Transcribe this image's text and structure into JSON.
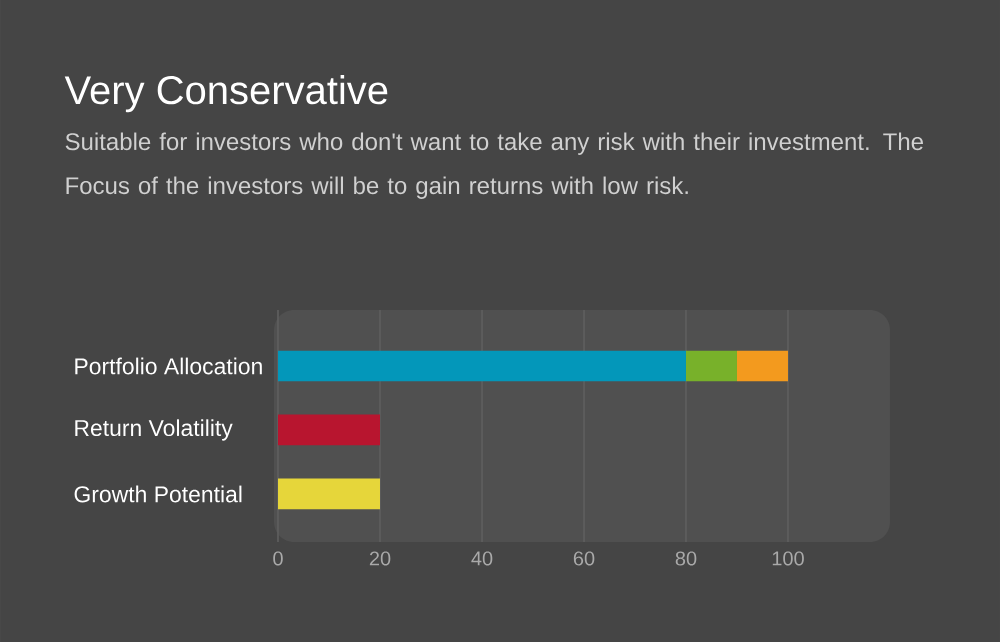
{
  "chart_data": {
    "type": "bar",
    "orientation": "horizontal",
    "stacked": true,
    "title": "Very Conservative",
    "subtitle": "Suitable for investors who don't want to take any risk with their investment. The Focus of the investors will be to gain returns with low risk.",
    "categories": [
      "Portfolio Allocation",
      "Return Volatility",
      "Growth Potential"
    ],
    "series": [
      {
        "colors": [
          "#0397ba",
          "#b8152f",
          "#e6d63a"
        ],
        "values": [
          80,
          20,
          20
        ]
      },
      {
        "color": "#78b12a",
        "values": [
          10,
          null,
          null
        ]
      },
      {
        "color": "#f39a1e",
        "values": [
          10,
          null,
          null
        ]
      }
    ],
    "xlim": [
      0,
      120
    ],
    "xticks": [
      0,
      20,
      40,
      60,
      80,
      100
    ],
    "grid": "x"
  }
}
